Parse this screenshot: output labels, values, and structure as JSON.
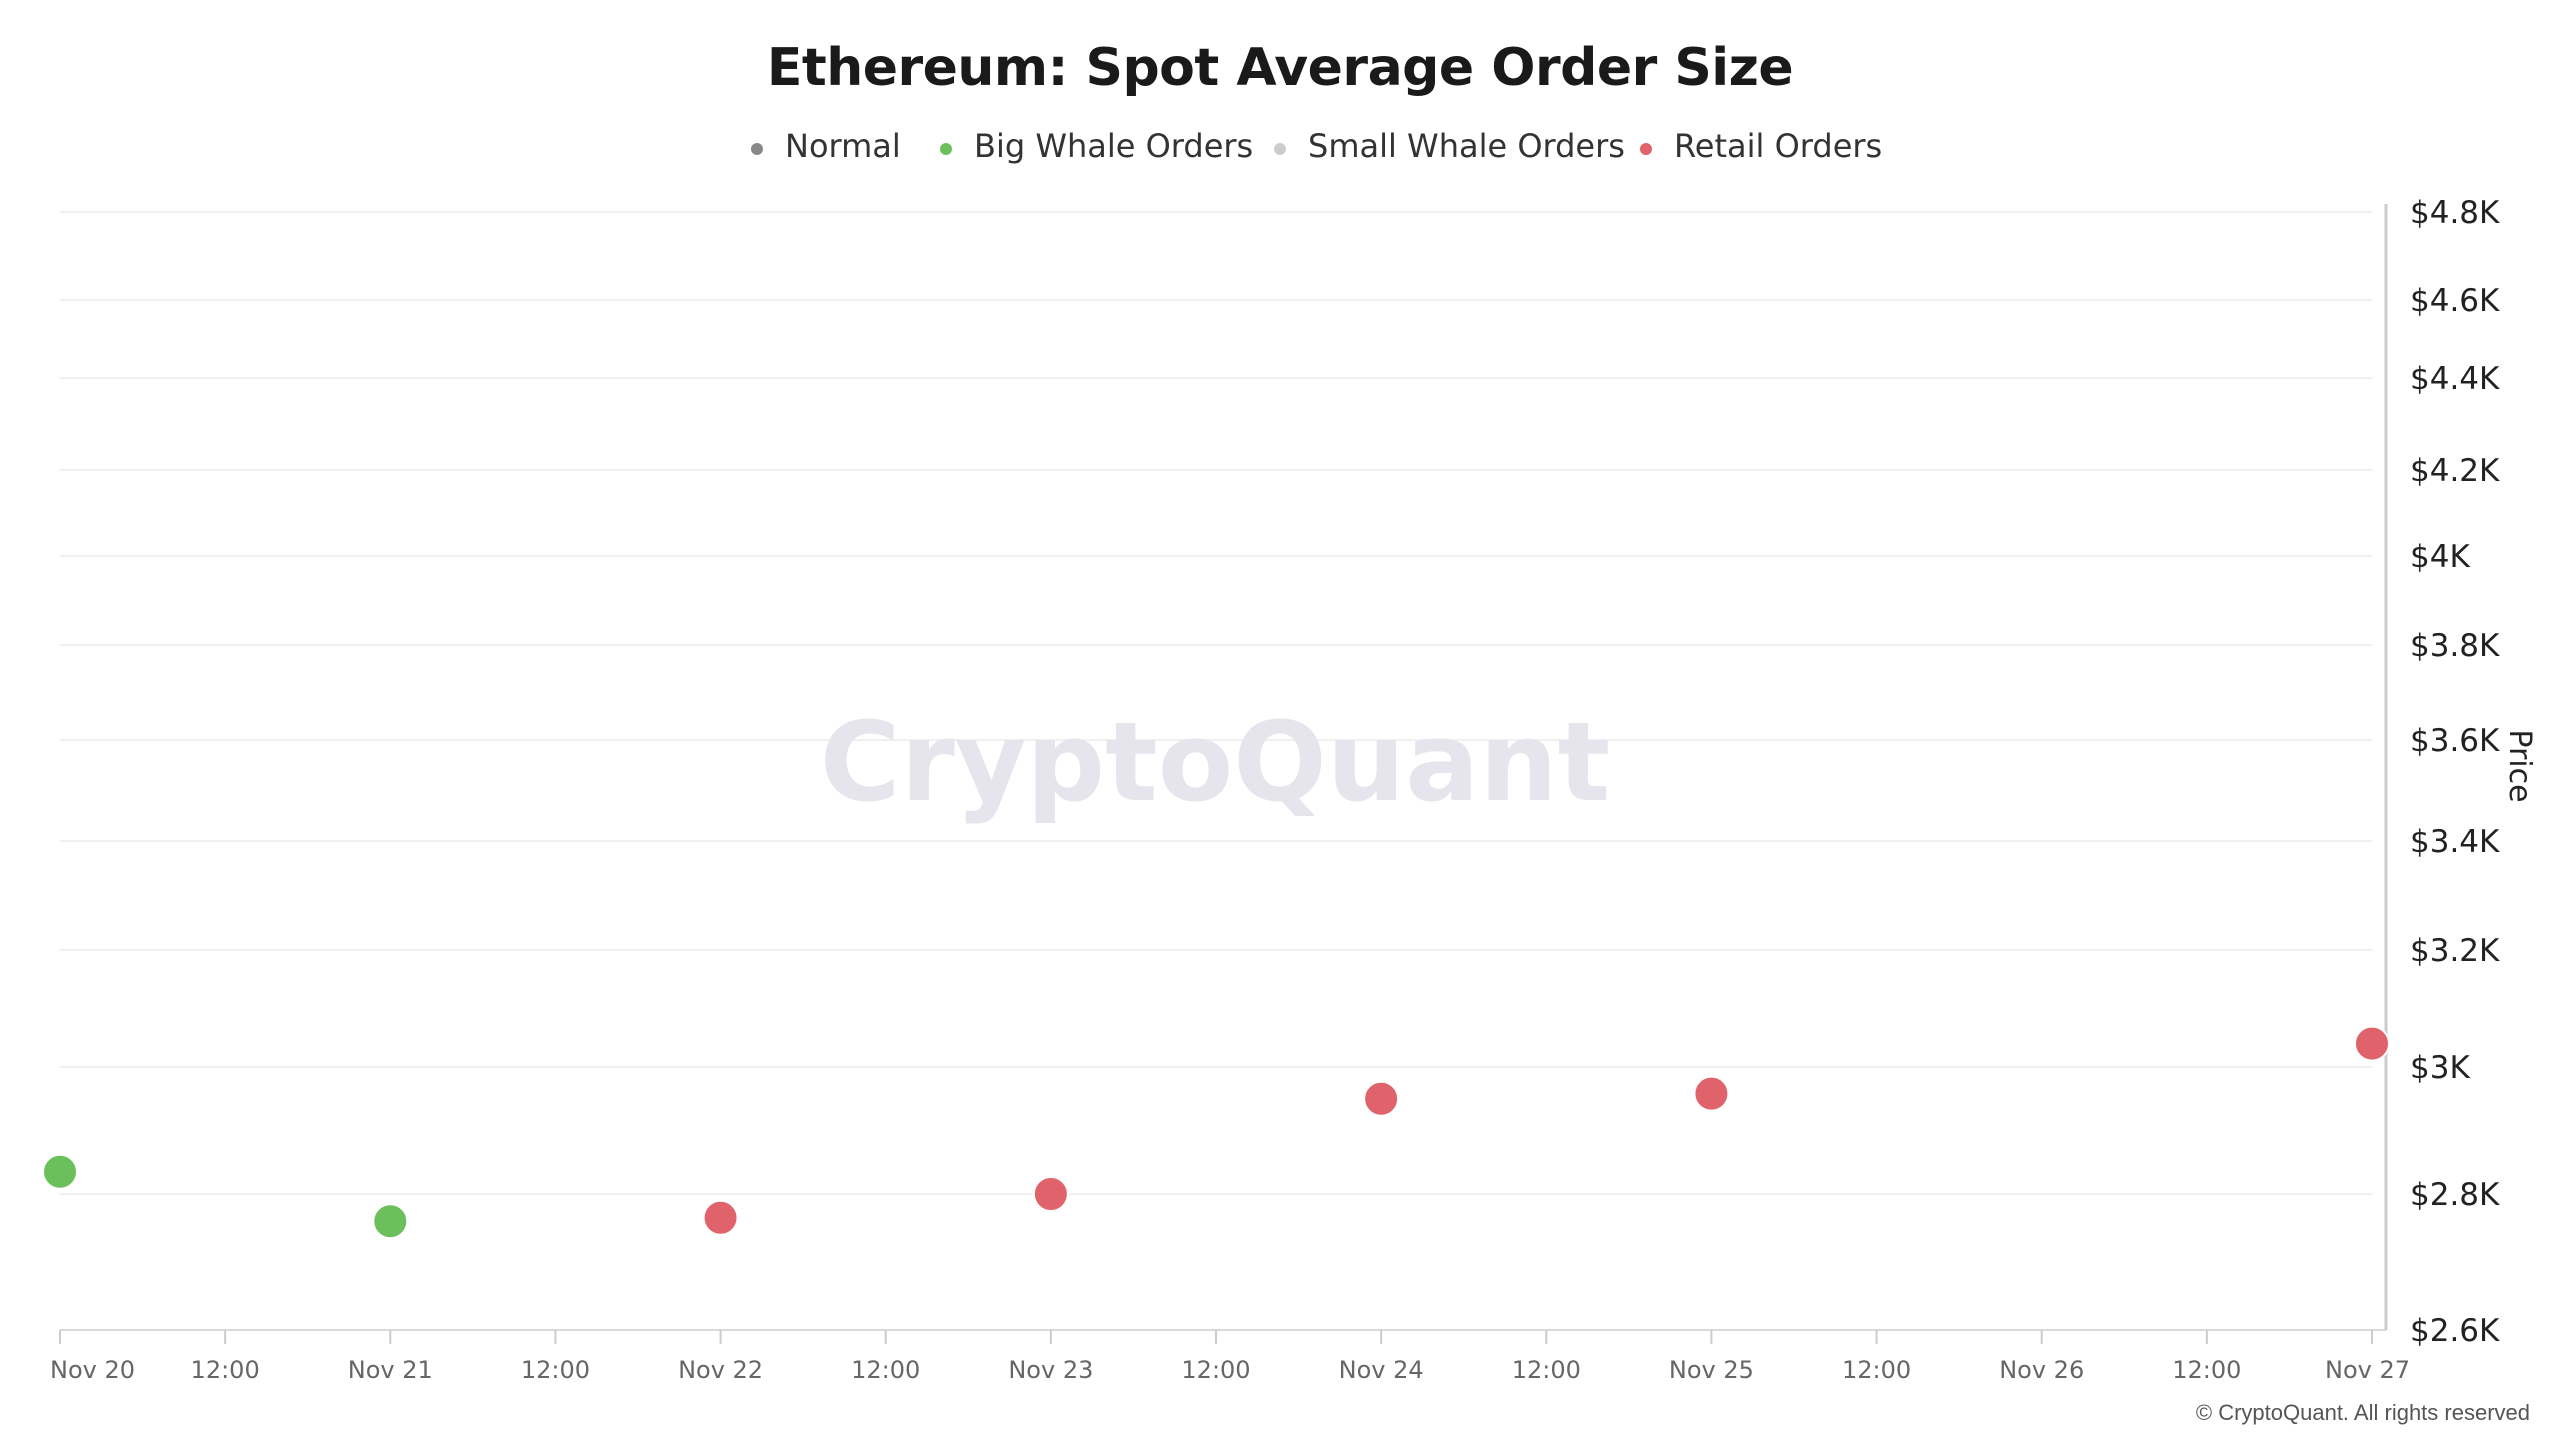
{
  "chart_data": {
    "type": "scatter",
    "title": "Ethereum: Spot Average Order Size",
    "ylabel": "Price",
    "xlabel": "",
    "ylim": [
      2600,
      4800
    ],
    "yticks": [
      {
        "value": 2600,
        "label": "$2.6K"
      },
      {
        "value": 2800,
        "label": "$2.8K"
      },
      {
        "value": 3000,
        "label": "$3K"
      },
      {
        "value": 3200,
        "label": "$3.2K"
      },
      {
        "value": 3400,
        "label": "$3.4K"
      },
      {
        "value": 3600,
        "label": "$3.6K"
      },
      {
        "value": 3800,
        "label": "$3.8K"
      },
      {
        "value": 4000,
        "label": "$4K"
      },
      {
        "value": 4200,
        "label": "$4.2K"
      },
      {
        "value": 4400,
        "label": "$4.4K"
      },
      {
        "value": 4600,
        "label": "$4.6K"
      },
      {
        "value": 4800,
        "label": "$4.8K"
      }
    ],
    "xlim": [
      "Nov 20 00:00",
      "Nov 27 00:00"
    ],
    "xticks": [
      "Nov 20",
      "12:00",
      "Nov 21",
      "12:00",
      "Nov 22",
      "12:00",
      "Nov 23",
      "12:00",
      "Nov 24",
      "12:00",
      "Nov 25",
      "12:00",
      "Nov 26",
      "12:00",
      "Nov 27"
    ],
    "grid": true,
    "legend_position": "top-center",
    "series": [
      {
        "name": "Normal",
        "color": "#888888",
        "points": []
      },
      {
        "name": "Big Whale Orders",
        "color": "#6cc05c",
        "points": [
          {
            "x": "Nov 20",
            "y": 2835
          },
          {
            "x": "Nov 21",
            "y": 2760
          }
        ]
      },
      {
        "name": "Small Whale Orders",
        "color": "#cccccc",
        "points": []
      },
      {
        "name": "Retail Orders",
        "color": "#e0626a",
        "points": [
          {
            "x": "Nov 22",
            "y": 2765
          },
          {
            "x": "Nov 23",
            "y": 2800
          },
          {
            "x": "Nov 24",
            "y": 2950
          },
          {
            "x": "Nov 25",
            "y": 2958
          },
          {
            "x": "Nov 27",
            "y": 3040
          }
        ]
      }
    ]
  },
  "watermark": "CryptoQuant",
  "copyright": "© CryptoQuant. All rights reserved"
}
